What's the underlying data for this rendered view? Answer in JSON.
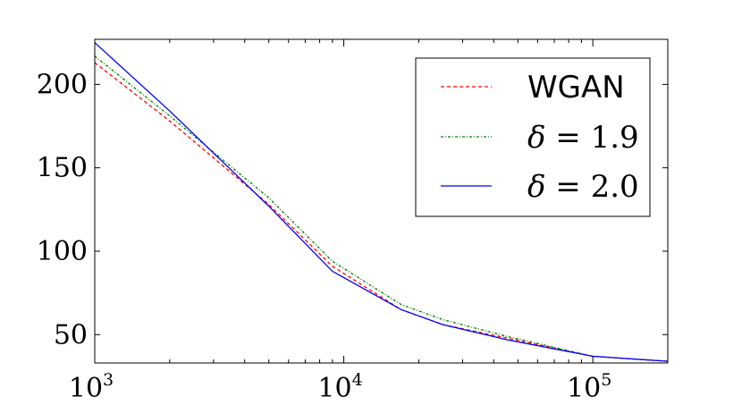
{
  "chart_data": {
    "type": "line",
    "xscale": "log",
    "xlim": [
      1000,
      200000
    ],
    "ylim": [
      33,
      227
    ],
    "x_ticks": [
      {
        "value": 1000,
        "base": "10",
        "exp": "3"
      },
      {
        "value": 10000,
        "base": "10",
        "exp": "4"
      },
      {
        "value": 100000,
        "base": "10",
        "exp": "5"
      }
    ],
    "y_ticks": [
      {
        "value": 50,
        "label": "50"
      },
      {
        "value": 100,
        "label": "100"
      },
      {
        "value": 150,
        "label": "150"
      },
      {
        "value": 200,
        "label": "200"
      }
    ],
    "legend": {
      "position": "top-right"
    },
    "series": [
      {
        "name": "WGAN",
        "label_parts": [
          "WGAN"
        ],
        "color": "#ff0000",
        "linestyle": "dashed",
        "x": [
          1000,
          2000,
          5000,
          9000,
          17000,
          25000,
          45000,
          100000,
          200000
        ],
        "y": [
          213,
          178,
          128,
          91,
          65,
          56,
          48,
          37,
          34
        ]
      },
      {
        "name": "δ = 1.9",
        "label_parts": [
          "δ",
          " = 1.9"
        ],
        "color": "#008000",
        "linestyle": "dashdot",
        "x": [
          1000,
          2000,
          5000,
          9000,
          17000,
          25000,
          45000,
          100000,
          200000
        ],
        "y": [
          217,
          181,
          132,
          94,
          68,
          59,
          49,
          37,
          34
        ]
      },
      {
        "name": "δ = 2.0",
        "label_parts": [
          "δ",
          " = 2.0"
        ],
        "color": "#0000ff",
        "linestyle": "solid",
        "x": [
          1000,
          2000,
          5000,
          9000,
          17000,
          25000,
          45000,
          100000,
          200000
        ],
        "y": [
          225,
          184,
          127,
          88,
          65,
          56,
          47,
          37,
          34
        ]
      }
    ]
  }
}
